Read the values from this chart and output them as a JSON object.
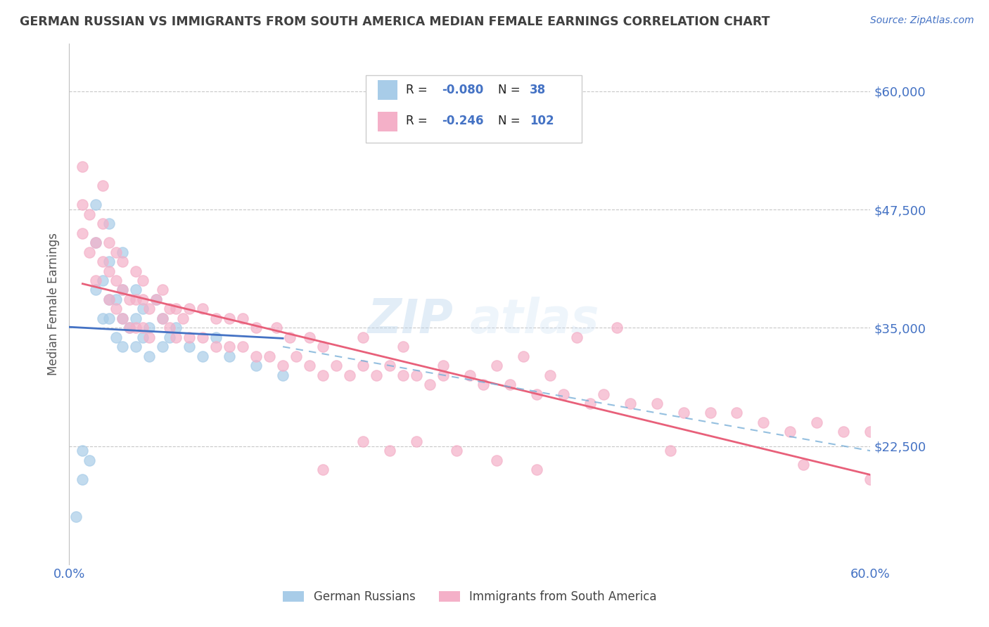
{
  "title": "GERMAN RUSSIAN VS IMMIGRANTS FROM SOUTH AMERICA MEDIAN FEMALE EARNINGS CORRELATION CHART",
  "source": "Source: ZipAtlas.com",
  "ylabel": "Median Female Earnings",
  "y_ticks": [
    22500,
    35000,
    47500,
    60000
  ],
  "y_tick_labels": [
    "$22,500",
    "$35,000",
    "$47,500",
    "$60,000"
  ],
  "x_min": 0.0,
  "x_max": 0.6,
  "y_min": 10000,
  "y_max": 65000,
  "blue_color": "#a8cce8",
  "pink_color": "#f4b0c8",
  "blue_line_color": "#4472c4",
  "pink_line_color": "#e8607a",
  "dashed_line_color": "#7ab0d8",
  "axis_color": "#4472c4",
  "title_color": "#404040",
  "source_color": "#4472c4",
  "blue_scatter_x": [
    0.005,
    0.01,
    0.01,
    0.015,
    0.02,
    0.02,
    0.02,
    0.025,
    0.025,
    0.03,
    0.03,
    0.03,
    0.03,
    0.035,
    0.035,
    0.04,
    0.04,
    0.04,
    0.04,
    0.045,
    0.05,
    0.05,
    0.05,
    0.055,
    0.055,
    0.06,
    0.06,
    0.065,
    0.07,
    0.07,
    0.075,
    0.08,
    0.09,
    0.1,
    0.11,
    0.12,
    0.14,
    0.16
  ],
  "blue_scatter_y": [
    15000,
    19000,
    22000,
    21000,
    39000,
    44000,
    48000,
    36000,
    40000,
    36000,
    38000,
    42000,
    46000,
    34000,
    38000,
    33000,
    36000,
    39000,
    43000,
    35000,
    33000,
    36000,
    39000,
    34000,
    37000,
    32000,
    35000,
    38000,
    33000,
    36000,
    34000,
    35000,
    33000,
    32000,
    34000,
    32000,
    31000,
    30000
  ],
  "pink_scatter_x": [
    0.01,
    0.01,
    0.01,
    0.015,
    0.015,
    0.02,
    0.02,
    0.025,
    0.025,
    0.025,
    0.03,
    0.03,
    0.03,
    0.035,
    0.035,
    0.035,
    0.04,
    0.04,
    0.04,
    0.045,
    0.045,
    0.05,
    0.05,
    0.05,
    0.055,
    0.055,
    0.06,
    0.06,
    0.07,
    0.07,
    0.075,
    0.08,
    0.08,
    0.09,
    0.09,
    0.1,
    0.1,
    0.11,
    0.11,
    0.12,
    0.12,
    0.13,
    0.13,
    0.14,
    0.14,
    0.15,
    0.155,
    0.16,
    0.165,
    0.17,
    0.18,
    0.18,
    0.19,
    0.19,
    0.2,
    0.21,
    0.22,
    0.22,
    0.23,
    0.24,
    0.25,
    0.26,
    0.27,
    0.28,
    0.3,
    0.31,
    0.33,
    0.35,
    0.37,
    0.39,
    0.4,
    0.42,
    0.44,
    0.46,
    0.48,
    0.5,
    0.52,
    0.54,
    0.56,
    0.58,
    0.6,
    0.38,
    0.41,
    0.25,
    0.28,
    0.32,
    0.34,
    0.36,
    0.055,
    0.065,
    0.075,
    0.085,
    0.19,
    0.22,
    0.24,
    0.26,
    0.29,
    0.32,
    0.35,
    0.45,
    0.55,
    0.6
  ],
  "pink_scatter_y": [
    45000,
    48000,
    52000,
    43000,
    47000,
    40000,
    44000,
    42000,
    46000,
    50000,
    38000,
    41000,
    44000,
    37000,
    40000,
    43000,
    36000,
    39000,
    42000,
    35000,
    38000,
    35000,
    38000,
    41000,
    35000,
    38000,
    34000,
    37000,
    36000,
    39000,
    35000,
    34000,
    37000,
    34000,
    37000,
    34000,
    37000,
    33000,
    36000,
    33000,
    36000,
    33000,
    36000,
    32000,
    35000,
    32000,
    35000,
    31000,
    34000,
    32000,
    31000,
    34000,
    30000,
    33000,
    31000,
    30000,
    31000,
    34000,
    30000,
    31000,
    30000,
    30000,
    29000,
    30000,
    30000,
    29000,
    29000,
    28000,
    28000,
    27000,
    28000,
    27000,
    27000,
    26000,
    26000,
    26000,
    25000,
    24000,
    25000,
    24000,
    24000,
    34000,
    35000,
    33000,
    31000,
    31000,
    32000,
    30000,
    40000,
    38000,
    37000,
    36000,
    20000,
    23000,
    22000,
    23000,
    22000,
    21000,
    20000,
    22000,
    20500,
    19000
  ]
}
